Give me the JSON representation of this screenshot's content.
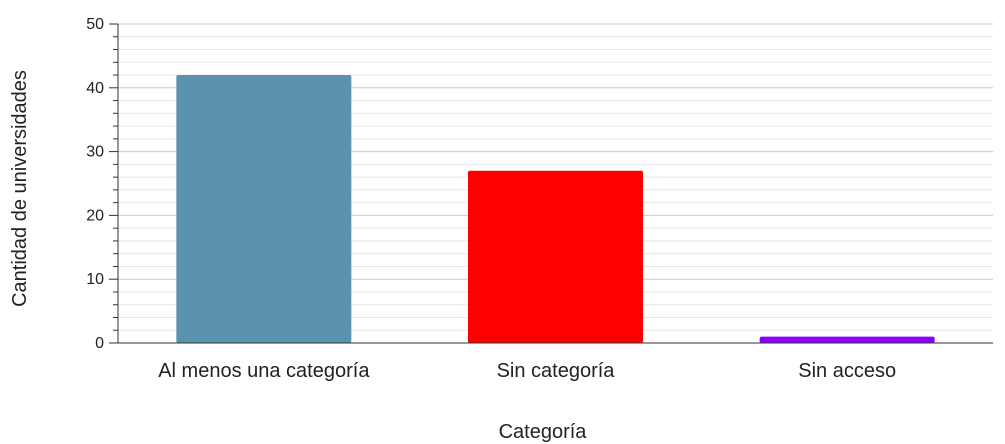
{
  "chart_data": {
    "type": "bar",
    "title": "",
    "xlabel": "Categoría",
    "ylabel": "Cantidad de universidades",
    "categories": [
      "Al menos una categoría",
      "Sin categoría",
      "Sin acceso"
    ],
    "values": [
      42,
      27,
      1
    ],
    "colors": [
      "#5b92ae",
      "#ff0000",
      "#8a00ff"
    ],
    "ylim": [
      0,
      50
    ],
    "yticks": [
      0,
      10,
      20,
      30,
      40,
      50
    ],
    "minor_ticks_per_major": 5,
    "grid": true
  }
}
